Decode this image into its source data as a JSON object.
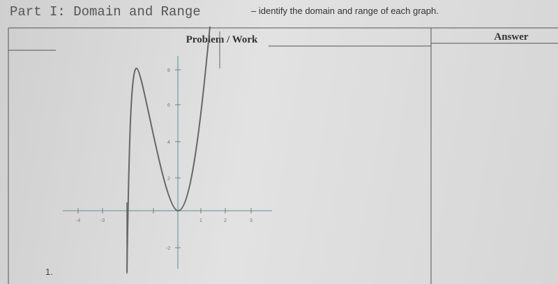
{
  "header": {
    "title": "Part I: Domain and Range",
    "subtitle": "– identify the domain and range of each graph."
  },
  "table": {
    "columns": [
      "Problem / Work",
      "Answer"
    ],
    "rows": [
      {
        "number": "1."
      }
    ]
  },
  "graph": {
    "x_tick_labels": [
      "-4",
      "-3",
      "1",
      "2",
      "3"
    ],
    "y_tick_labels": [
      "8",
      "6",
      "4",
      "2",
      "-2"
    ]
  }
}
